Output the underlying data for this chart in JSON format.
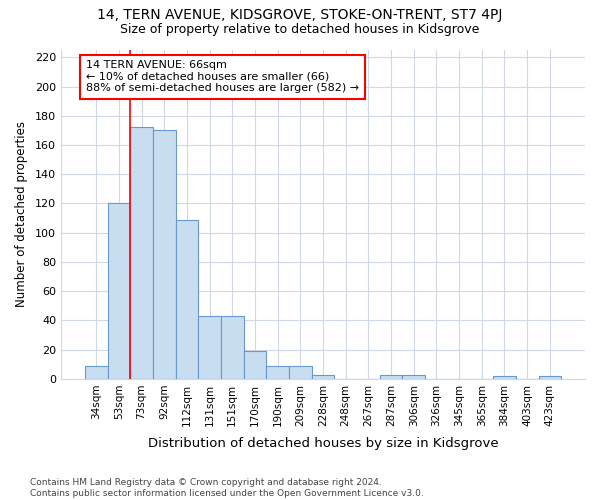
{
  "title": "14, TERN AVENUE, KIDSGROVE, STOKE-ON-TRENT, ST7 4PJ",
  "subtitle": "Size of property relative to detached houses in Kidsgrove",
  "xlabel": "Distribution of detached houses by size in Kidsgrove",
  "ylabel": "Number of detached properties",
  "categories": [
    "34sqm",
    "53sqm",
    "73sqm",
    "92sqm",
    "112sqm",
    "131sqm",
    "151sqm",
    "170sqm",
    "190sqm",
    "209sqm",
    "228sqm",
    "248sqm",
    "267sqm",
    "287sqm",
    "306sqm",
    "326sqm",
    "345sqm",
    "365sqm",
    "384sqm",
    "403sqm",
    "423sqm"
  ],
  "values": [
    9,
    120,
    172,
    170,
    109,
    43,
    43,
    19,
    9,
    9,
    3,
    0,
    0,
    3,
    3,
    0,
    0,
    0,
    2,
    0,
    2
  ],
  "bar_color": "#c8ddf0",
  "bar_edge_color": "#6699cc",
  "vline_x_pos": 1.5,
  "vline_color": "red",
  "annotation_line1": "14 TERN AVENUE: 66sqm",
  "annotation_line2": "← 10% of detached houses are smaller (66)",
  "annotation_line3": "88% of semi-detached houses are larger (582) →",
  "ylim": [
    0,
    225
  ],
  "yticks": [
    0,
    20,
    40,
    60,
    80,
    100,
    120,
    140,
    160,
    180,
    200,
    220
  ],
  "bg_color": "#ffffff",
  "grid_color": "#d0d8e8",
  "footer": "Contains HM Land Registry data © Crown copyright and database right 2024.\nContains public sector information licensed under the Open Government Licence v3.0."
}
